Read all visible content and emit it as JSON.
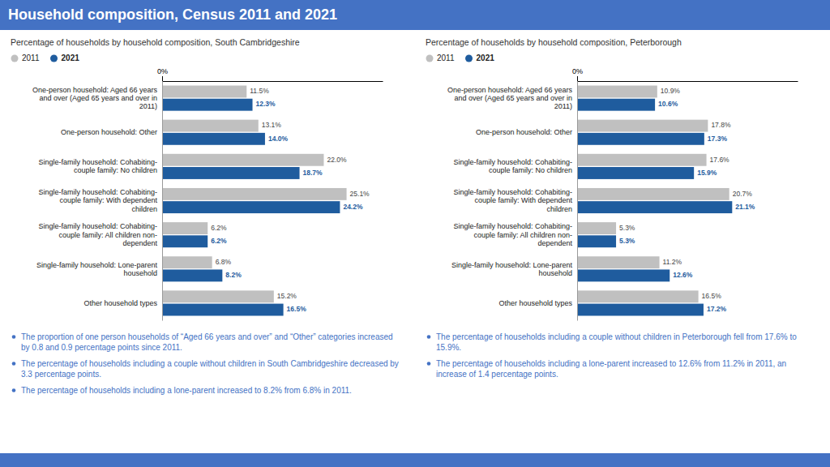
{
  "title": "Household composition, Census 2011 and 2021",
  "chart_data": [
    {
      "type": "bar",
      "orientation": "horizontal",
      "subtitle": "Percentage of households by household composition, South Cambridgeshire",
      "categories": [
        "One-person household: Aged 66 years\nand over (Aged 65 years and over in\n2011)",
        "One-person household: Other",
        "Single-family household: Cohabiting-\ncouple family: No children",
        "Single-family household: Cohabiting-\ncouple family: With dependent\nchildren",
        "Single-family household: Cohabiting-\ncouple family: All children non-\ndependent",
        "Single-family household: Lone-parent\nhousehold",
        "Other household types"
      ],
      "series": [
        {
          "name": "2011",
          "color": "#C0C0C0",
          "values": [
            11.5,
            13.1,
            22.0,
            25.1,
            6.2,
            6.8,
            15.2
          ],
          "value_labels": [
            "11.5%",
            "13.1%",
            "22.0%",
            "25.1%",
            "6.2%",
            "6.8%",
            "15.2%"
          ]
        },
        {
          "name": "2021",
          "color": "#1F5C9E",
          "values": [
            12.3,
            14.0,
            18.7,
            24.2,
            6.2,
            8.2,
            16.5
          ],
          "value_labels": [
            "12.3%",
            "14.0%",
            "18.7%",
            "24.2%",
            "6.2%",
            "8.2%",
            "16.5%"
          ]
        }
      ],
      "xlim": [
        0,
        30
      ],
      "xticks": [
        {
          "value": 0,
          "label": "0%"
        }
      ],
      "grid": false,
      "legend": "top",
      "data_labels": true,
      "annotations": [
        "The proportion of one person households of “Aged 66 years and over” and “Other” categories increased by 0.8 and 0.9 percentage points since 2011.",
        "The percentage of households including a couple without children in South Cambridgeshire decreased by 3.3 percentage points.",
        "The percentage of households including a lone-parent increased to 8.2% from 6.8% in 2011."
      ]
    },
    {
      "type": "bar",
      "orientation": "horizontal",
      "subtitle": "Percentage of households by household composition, Peterborough",
      "categories": [
        "One-person household: Aged 66 years\nand over (Aged 65 years and over in\n2011)",
        "One-person household: Other",
        "Single-family household: Cohabiting-\ncouple family: No children",
        "Single-family household: Cohabiting-\ncouple family: With dependent\nchildren",
        "Single-family household: Cohabiting-\ncouple family: All children non-\ndependent",
        "Single-family household: Lone-parent\nhousehold",
        "Other household types"
      ],
      "series": [
        {
          "name": "2011",
          "color": "#C0C0C0",
          "values": [
            10.9,
            17.8,
            17.6,
            20.7,
            5.3,
            11.2,
            16.5
          ],
          "value_labels": [
            "10.9%",
            "17.8%",
            "17.6%",
            "20.7%",
            "5.3%",
            "11.2%",
            "16.5%"
          ]
        },
        {
          "name": "2021",
          "color": "#1F5C9E",
          "values": [
            10.6,
            17.3,
            15.9,
            21.1,
            5.3,
            12.6,
            17.2
          ],
          "value_labels": [
            "10.6%",
            "17.3%",
            "15.9%",
            "21.1%",
            "5.3%",
            "12.6%",
            "17.2%"
          ]
        }
      ],
      "xlim": [
        0,
        30
      ],
      "xticks": [
        {
          "value": 0,
          "label": "0%"
        }
      ],
      "grid": false,
      "legend": "top",
      "data_labels": true,
      "annotations": [
        "The percentage of households including a couple without children in Peterborough fell from 17.6% to 15.9%.",
        "The percentage of households including a lone-parent increased to 12.6% from 11.2% in 2011, an increase of 1.4 percentage points."
      ]
    }
  ]
}
